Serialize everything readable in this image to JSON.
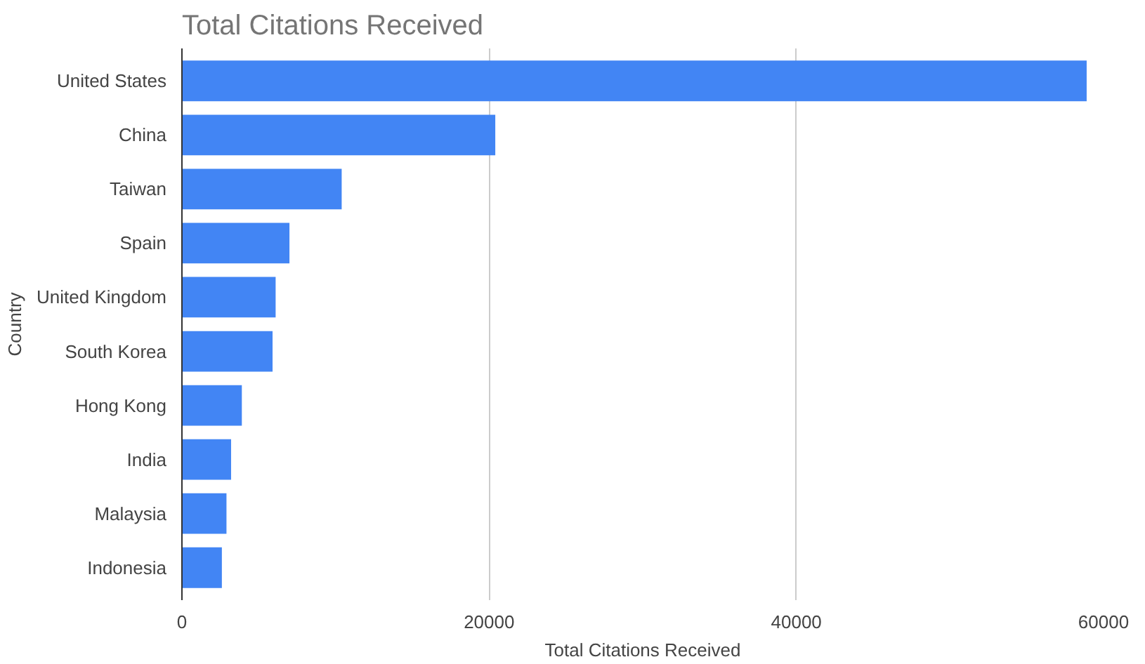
{
  "chart_data": {
    "type": "bar",
    "orientation": "horizontal",
    "title": "Total Citations Received",
    "xlabel": "Total Citations Received",
    "ylabel": "Country",
    "categories": [
      "United States",
      "China",
      "Taiwan",
      "Spain",
      "United Kingdom",
      "South Korea",
      "Hong Kong",
      "India",
      "Malaysia",
      "Indonesia"
    ],
    "values": [
      58900,
      20400,
      10400,
      7000,
      6100,
      5900,
      3900,
      3200,
      2900,
      2600
    ],
    "color": "#4285f4",
    "xlim": [
      0,
      60000
    ],
    "xticks": [
      0,
      20000,
      40000,
      60000
    ],
    "grid": "x"
  }
}
